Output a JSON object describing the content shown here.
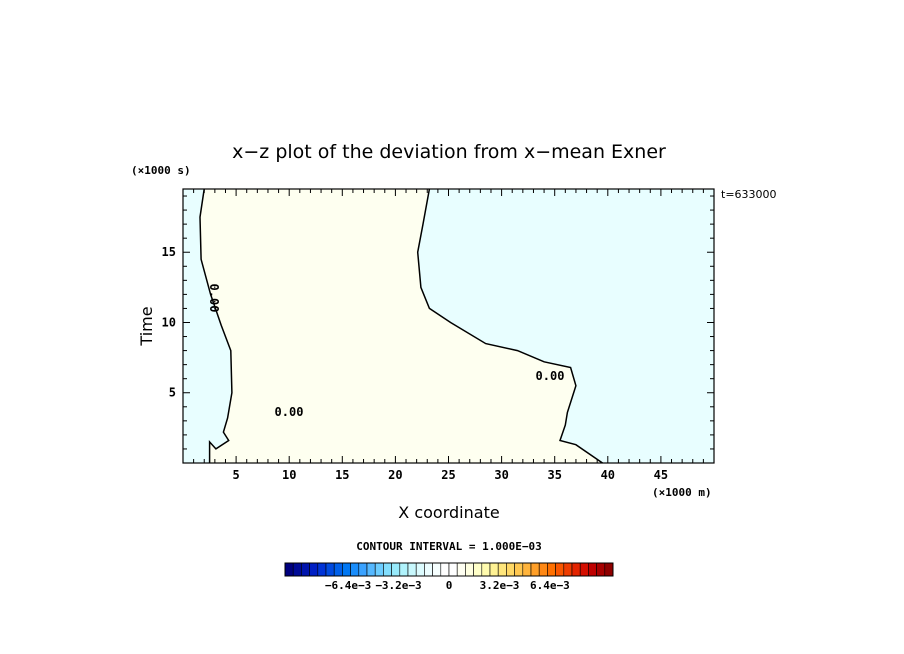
{
  "chart_data": {
    "type": "heatmap",
    "title": "x−z plot of the deviation from x−mean Exner",
    "xlabel": "X coordinate",
    "ylabel": "Time",
    "x_unit": "(×1000 m)",
    "y_unit": "(×1000 s)",
    "time_label": "t=633000",
    "xlim": [
      0,
      50
    ],
    "ylim": [
      0,
      19.5
    ],
    "x_ticks": [
      5,
      10,
      15,
      20,
      25,
      30,
      35,
      40,
      45
    ],
    "y_ticks": [
      5,
      10,
      15
    ],
    "contour_interval_label": "CONTOUR INTERVAL = 1.000E−03",
    "contour_labels": [
      "0.00",
      "0.00",
      "0.00"
    ],
    "zero_contour": [
      [
        2.0,
        19.5
      ],
      [
        1.6,
        17.5
      ],
      [
        1.7,
        14.5
      ],
      [
        2.6,
        12.0
      ],
      [
        3.6,
        9.8
      ],
      [
        4.5,
        8.0
      ],
      [
        4.6,
        5.0
      ],
      [
        4.2,
        3.2
      ],
      [
        3.8,
        2.2
      ],
      [
        4.3,
        1.6
      ],
      [
        3.1,
        1.0
      ],
      [
        2.5,
        1.5
      ],
      [
        2.5,
        0.0
      ]
    ],
    "zero_contour_east": [
      [
        23.2,
        19.5
      ],
      [
        22.6,
        17.0
      ],
      [
        22.1,
        15.0
      ],
      [
        22.4,
        12.5
      ],
      [
        23.2,
        11.0
      ],
      [
        25.2,
        10.0
      ],
      [
        28.5,
        8.5
      ],
      [
        31.5,
        8.0
      ],
      [
        34.0,
        7.2
      ],
      [
        36.5,
        6.8
      ],
      [
        37.0,
        5.5
      ],
      [
        36.2,
        3.6
      ],
      [
        36.0,
        2.7
      ],
      [
        35.5,
        1.6
      ],
      [
        37.0,
        1.3
      ],
      [
        39.5,
        0.0
      ]
    ],
    "positive_fill": "#fefff0",
    "negative_fill": "#e8feff",
    "colorbar": {
      "tick_labels": [
        "−6.4e−3",
        "−3.2e−3",
        "0",
        "3.2e−3",
        "6.4e−3"
      ],
      "tick_values": [
        -0.0064,
        -0.0032,
        0,
        0.0032,
        0.0064
      ],
      "range": [
        -0.0104,
        0.0104
      ],
      "colors": [
        "#00007f",
        "#000a96",
        "#0014ad",
        "#001fc4",
        "#0033d6",
        "#004ae0",
        "#0060ea",
        "#0077f3",
        "#198dfb",
        "#3aa2ff",
        "#55b8ff",
        "#6ccdff",
        "#82defd",
        "#98eafb",
        "#b0f3fc",
        "#c8f8fd",
        "#dcfbfe",
        "#ecfdff",
        "#f6ffff",
        "#ffffff",
        "#ffffff",
        "#fffff2",
        "#ffffe0",
        "#ffffc8",
        "#fffbae",
        "#fff294",
        "#ffe67c",
        "#ffd866",
        "#ffc750",
        "#ffb43c",
        "#ff9f28",
        "#ff8814",
        "#ff7000",
        "#f95600",
        "#ee3c00",
        "#e32400",
        "#d40e00",
        "#bf0000",
        "#a70000",
        "#8f0000"
      ]
    }
  }
}
